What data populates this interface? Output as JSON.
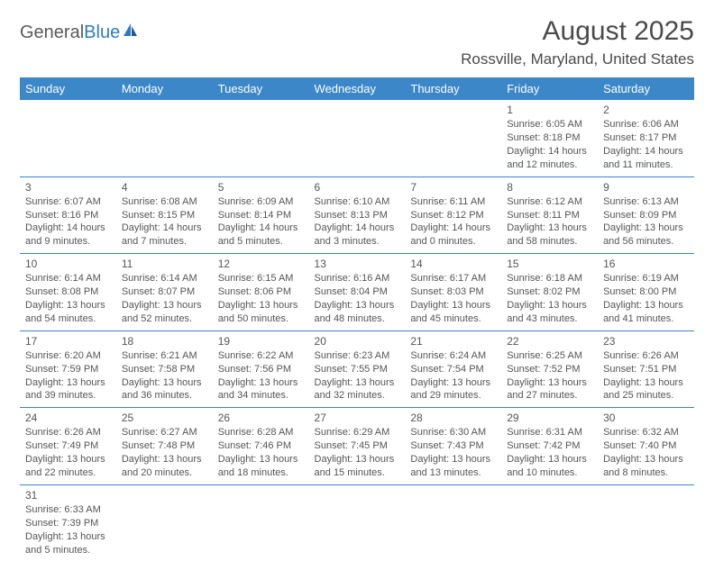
{
  "logo": {
    "primary": "General",
    "secondary": "Blue"
  },
  "title": "August 2025",
  "location": "Rossville, Maryland, United States",
  "colors": {
    "header_bg": "#3b87c8",
    "header_text": "#ffffff",
    "text": "#555555",
    "logo_blue": "#2f7bbf"
  },
  "day_headers": [
    "Sunday",
    "Monday",
    "Tuesday",
    "Wednesday",
    "Thursday",
    "Friday",
    "Saturday"
  ],
  "weeks": [
    [
      null,
      null,
      null,
      null,
      null,
      {
        "n": "1",
        "sr": "Sunrise: 6:05 AM",
        "ss": "Sunset: 8:18 PM",
        "dl1": "Daylight: 14 hours",
        "dl2": "and 12 minutes."
      },
      {
        "n": "2",
        "sr": "Sunrise: 6:06 AM",
        "ss": "Sunset: 8:17 PM",
        "dl1": "Daylight: 14 hours",
        "dl2": "and 11 minutes."
      }
    ],
    [
      {
        "n": "3",
        "sr": "Sunrise: 6:07 AM",
        "ss": "Sunset: 8:16 PM",
        "dl1": "Daylight: 14 hours",
        "dl2": "and 9 minutes."
      },
      {
        "n": "4",
        "sr": "Sunrise: 6:08 AM",
        "ss": "Sunset: 8:15 PM",
        "dl1": "Daylight: 14 hours",
        "dl2": "and 7 minutes."
      },
      {
        "n": "5",
        "sr": "Sunrise: 6:09 AM",
        "ss": "Sunset: 8:14 PM",
        "dl1": "Daylight: 14 hours",
        "dl2": "and 5 minutes."
      },
      {
        "n": "6",
        "sr": "Sunrise: 6:10 AM",
        "ss": "Sunset: 8:13 PM",
        "dl1": "Daylight: 14 hours",
        "dl2": "and 3 minutes."
      },
      {
        "n": "7",
        "sr": "Sunrise: 6:11 AM",
        "ss": "Sunset: 8:12 PM",
        "dl1": "Daylight: 14 hours",
        "dl2": "and 0 minutes."
      },
      {
        "n": "8",
        "sr": "Sunrise: 6:12 AM",
        "ss": "Sunset: 8:11 PM",
        "dl1": "Daylight: 13 hours",
        "dl2": "and 58 minutes."
      },
      {
        "n": "9",
        "sr": "Sunrise: 6:13 AM",
        "ss": "Sunset: 8:09 PM",
        "dl1": "Daylight: 13 hours",
        "dl2": "and 56 minutes."
      }
    ],
    [
      {
        "n": "10",
        "sr": "Sunrise: 6:14 AM",
        "ss": "Sunset: 8:08 PM",
        "dl1": "Daylight: 13 hours",
        "dl2": "and 54 minutes."
      },
      {
        "n": "11",
        "sr": "Sunrise: 6:14 AM",
        "ss": "Sunset: 8:07 PM",
        "dl1": "Daylight: 13 hours",
        "dl2": "and 52 minutes."
      },
      {
        "n": "12",
        "sr": "Sunrise: 6:15 AM",
        "ss": "Sunset: 8:06 PM",
        "dl1": "Daylight: 13 hours",
        "dl2": "and 50 minutes."
      },
      {
        "n": "13",
        "sr": "Sunrise: 6:16 AM",
        "ss": "Sunset: 8:04 PM",
        "dl1": "Daylight: 13 hours",
        "dl2": "and 48 minutes."
      },
      {
        "n": "14",
        "sr": "Sunrise: 6:17 AM",
        "ss": "Sunset: 8:03 PM",
        "dl1": "Daylight: 13 hours",
        "dl2": "and 45 minutes."
      },
      {
        "n": "15",
        "sr": "Sunrise: 6:18 AM",
        "ss": "Sunset: 8:02 PM",
        "dl1": "Daylight: 13 hours",
        "dl2": "and 43 minutes."
      },
      {
        "n": "16",
        "sr": "Sunrise: 6:19 AM",
        "ss": "Sunset: 8:00 PM",
        "dl1": "Daylight: 13 hours",
        "dl2": "and 41 minutes."
      }
    ],
    [
      {
        "n": "17",
        "sr": "Sunrise: 6:20 AM",
        "ss": "Sunset: 7:59 PM",
        "dl1": "Daylight: 13 hours",
        "dl2": "and 39 minutes."
      },
      {
        "n": "18",
        "sr": "Sunrise: 6:21 AM",
        "ss": "Sunset: 7:58 PM",
        "dl1": "Daylight: 13 hours",
        "dl2": "and 36 minutes."
      },
      {
        "n": "19",
        "sr": "Sunrise: 6:22 AM",
        "ss": "Sunset: 7:56 PM",
        "dl1": "Daylight: 13 hours",
        "dl2": "and 34 minutes."
      },
      {
        "n": "20",
        "sr": "Sunrise: 6:23 AM",
        "ss": "Sunset: 7:55 PM",
        "dl1": "Daylight: 13 hours",
        "dl2": "and 32 minutes."
      },
      {
        "n": "21",
        "sr": "Sunrise: 6:24 AM",
        "ss": "Sunset: 7:54 PM",
        "dl1": "Daylight: 13 hours",
        "dl2": "and 29 minutes."
      },
      {
        "n": "22",
        "sr": "Sunrise: 6:25 AM",
        "ss": "Sunset: 7:52 PM",
        "dl1": "Daylight: 13 hours",
        "dl2": "and 27 minutes."
      },
      {
        "n": "23",
        "sr": "Sunrise: 6:26 AM",
        "ss": "Sunset: 7:51 PM",
        "dl1": "Daylight: 13 hours",
        "dl2": "and 25 minutes."
      }
    ],
    [
      {
        "n": "24",
        "sr": "Sunrise: 6:26 AM",
        "ss": "Sunset: 7:49 PM",
        "dl1": "Daylight: 13 hours",
        "dl2": "and 22 minutes."
      },
      {
        "n": "25",
        "sr": "Sunrise: 6:27 AM",
        "ss": "Sunset: 7:48 PM",
        "dl1": "Daylight: 13 hours",
        "dl2": "and 20 minutes."
      },
      {
        "n": "26",
        "sr": "Sunrise: 6:28 AM",
        "ss": "Sunset: 7:46 PM",
        "dl1": "Daylight: 13 hours",
        "dl2": "and 18 minutes."
      },
      {
        "n": "27",
        "sr": "Sunrise: 6:29 AM",
        "ss": "Sunset: 7:45 PM",
        "dl1": "Daylight: 13 hours",
        "dl2": "and 15 minutes."
      },
      {
        "n": "28",
        "sr": "Sunrise: 6:30 AM",
        "ss": "Sunset: 7:43 PM",
        "dl1": "Daylight: 13 hours",
        "dl2": "and 13 minutes."
      },
      {
        "n": "29",
        "sr": "Sunrise: 6:31 AM",
        "ss": "Sunset: 7:42 PM",
        "dl1": "Daylight: 13 hours",
        "dl2": "and 10 minutes."
      },
      {
        "n": "30",
        "sr": "Sunrise: 6:32 AM",
        "ss": "Sunset: 7:40 PM",
        "dl1": "Daylight: 13 hours",
        "dl2": "and 8 minutes."
      }
    ],
    [
      {
        "n": "31",
        "sr": "Sunrise: 6:33 AM",
        "ss": "Sunset: 7:39 PM",
        "dl1": "Daylight: 13 hours",
        "dl2": "and 5 minutes."
      },
      null,
      null,
      null,
      null,
      null,
      null
    ]
  ]
}
